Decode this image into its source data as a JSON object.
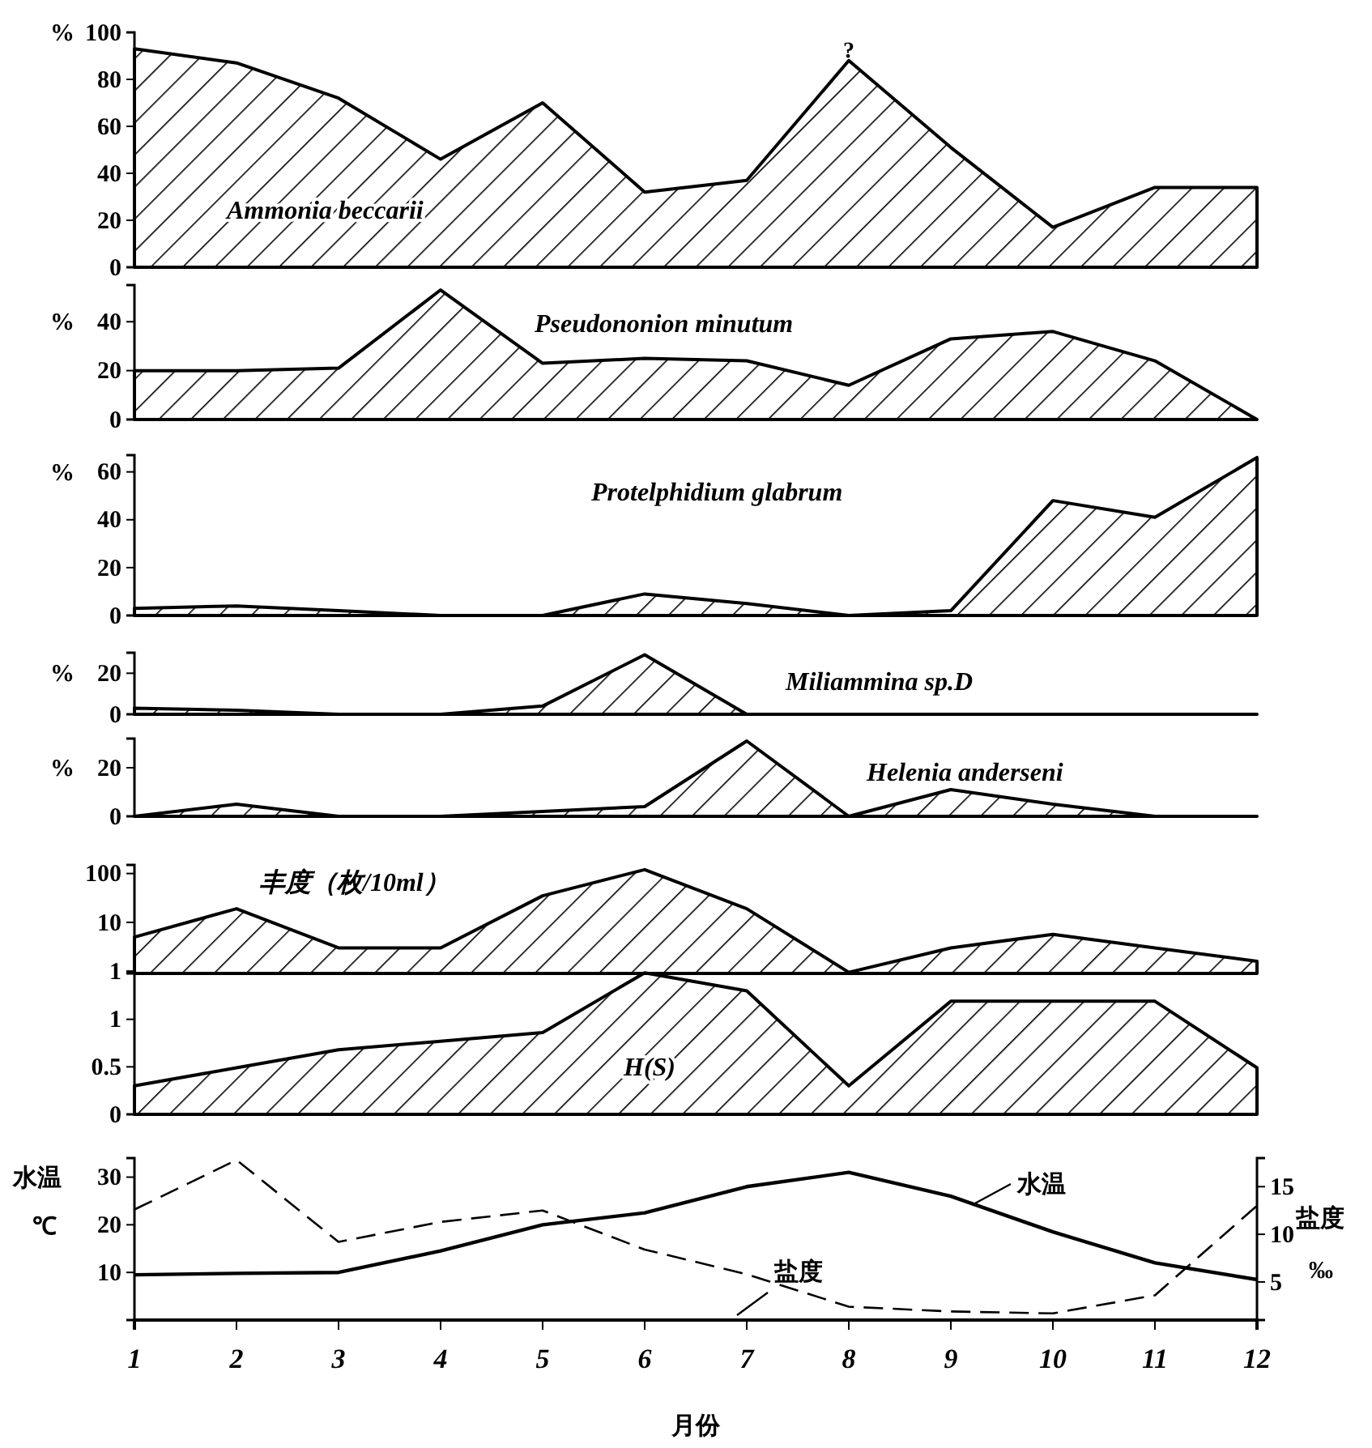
{
  "chart_data": [
    {
      "type": "area",
      "title": "Ammonia beccarii",
      "ylabel": "%",
      "x": [
        1,
        2,
        3,
        4,
        5,
        6,
        7,
        8,
        9,
        10,
        11,
        12
      ],
      "xlim": [
        1,
        12
      ],
      "ylim": [
        0,
        100
      ],
      "yticks": [
        0,
        20,
        40,
        60,
        80,
        100
      ],
      "tick_labels": "y",
      "series": [
        {
          "color": "#000000",
          "values": [
            93,
            87,
            72,
            46,
            70,
            32,
            37,
            88,
            51,
            17,
            34,
            34
          ]
        }
      ],
      "annotations": [
        {
          "text": "?",
          "x": 8,
          "y": 88
        }
      ]
    },
    {
      "type": "area",
      "title": "Pseudononion minutum",
      "ylabel": "%",
      "x": [
        1,
        2,
        3,
        4,
        5,
        6,
        7,
        8,
        9,
        10,
        11,
        12
      ],
      "xlim": [
        1,
        12
      ],
      "ylim": [
        0,
        55
      ],
      "yticks": [
        0,
        20,
        40
      ],
      "tick_labels": "y",
      "series": [
        {
          "color": "#000000",
          "values": [
            20,
            20,
            21,
            53,
            23,
            25,
            24,
            14,
            33,
            36,
            24,
            0
          ]
        }
      ]
    },
    {
      "type": "area",
      "title": "Protelphidium glabrum",
      "ylabel": "%",
      "x": [
        1,
        2,
        3,
        4,
        5,
        6,
        7,
        8,
        9,
        10,
        11,
        12
      ],
      "xlim": [
        1,
        12
      ],
      "ylim": [
        0,
        67
      ],
      "yticks": [
        0,
        20,
        40,
        60
      ],
      "tick_labels": "y",
      "series": [
        {
          "color": "#000000",
          "values": [
            3,
            4,
            2,
            0,
            0,
            9,
            5,
            0,
            2,
            48,
            41,
            66
          ]
        }
      ]
    },
    {
      "type": "area",
      "title": "Miliammina sp.D",
      "ylabel": "%",
      "x": [
        1,
        2,
        3,
        4,
        5,
        6,
        7,
        8,
        9,
        10,
        11,
        12
      ],
      "xlim": [
        1,
        12
      ],
      "ylim": [
        0,
        30
      ],
      "yticks": [
        0,
        20
      ],
      "tick_labels": "y",
      "series": [
        {
          "color": "#000000",
          "values": [
            3,
            2,
            0,
            0,
            4,
            29,
            0,
            0,
            0,
            0,
            0,
            0
          ]
        }
      ]
    },
    {
      "type": "area",
      "title": "Helenia anderseni",
      "ylabel": "%",
      "x": [
        1,
        2,
        3,
        4,
        5,
        6,
        7,
        8,
        9,
        10,
        11,
        12
      ],
      "xlim": [
        1,
        12
      ],
      "ylim": [
        0,
        32
      ],
      "yticks": [
        0,
        20
      ],
      "tick_labels": "y",
      "series": [
        {
          "color": "#000000",
          "values": [
            0,
            5,
            0,
            0,
            2,
            4,
            31,
            0,
            11,
            5,
            0,
            0
          ]
        }
      ]
    },
    {
      "type": "area",
      "title": "丰度（枚/10ml）",
      "log": "y",
      "x": [
        1,
        2,
        3,
        4,
        5,
        6,
        7,
        8,
        9,
        10,
        11,
        12
      ],
      "xlim": [
        1,
        12
      ],
      "ylim": [
        0.9,
        150
      ],
      "yticks": [
        1,
        10,
        100
      ],
      "tick_labels": "y",
      "series": [
        {
          "color": "#000000",
          "values": [
            5,
            19,
            3,
            3,
            35,
            120,
            19,
            0.95,
            3,
            5.7,
            3,
            1.6
          ]
        }
      ]
    },
    {
      "type": "area",
      "title": "H(S)",
      "x": [
        1,
        2,
        3,
        4,
        5,
        6,
        7,
        8,
        9,
        10,
        11,
        12
      ],
      "xlim": [
        1,
        12
      ],
      "ylim": [
        0,
        1.5
      ],
      "yticks": [
        0,
        0.5,
        1
      ],
      "tick_labels": "y",
      "series": [
        {
          "color": "#000000",
          "values": [
            0.3,
            0.49,
            0.68,
            0.77,
            0.86,
            1.49,
            1.3,
            0.3,
            1.19,
            1.19,
            1.19,
            0.49
          ]
        }
      ]
    },
    {
      "type": "line",
      "xlabel": "月份",
      "ylabel": "水温 ℃",
      "y2label": "盐度 ‰",
      "x": [
        1,
        2,
        3,
        4,
        5,
        6,
        7,
        8,
        9,
        10,
        11,
        12
      ],
      "xlim": [
        1,
        12
      ],
      "xticks": [
        1,
        2,
        3,
        4,
        5,
        6,
        7,
        8,
        9,
        10,
        11,
        12
      ],
      "ylim": [
        0,
        34
      ],
      "yticks": [
        10,
        20,
        30
      ],
      "y2lim": [
        1,
        18
      ],
      "y2ticks": [
        5,
        10,
        15
      ],
      "series": [
        {
          "name": "水温",
          "color": "#000000",
          "line_style": "solid",
          "values": [
            9.5,
            9.8,
            10,
            14.5,
            20,
            22.5,
            28,
            31,
            26,
            18.5,
            12,
            8.5
          ]
        },
        {
          "name": "盐度",
          "color": "#000000",
          "line_style": "dashed",
          "axis": "y2",
          "values": [
            12.6,
            17.8,
            9.2,
            11.3,
            12.5,
            8.4,
            5.8,
            2.4,
            1.9,
            1.7,
            3.6,
            13
          ]
        }
      ]
    }
  ]
}
